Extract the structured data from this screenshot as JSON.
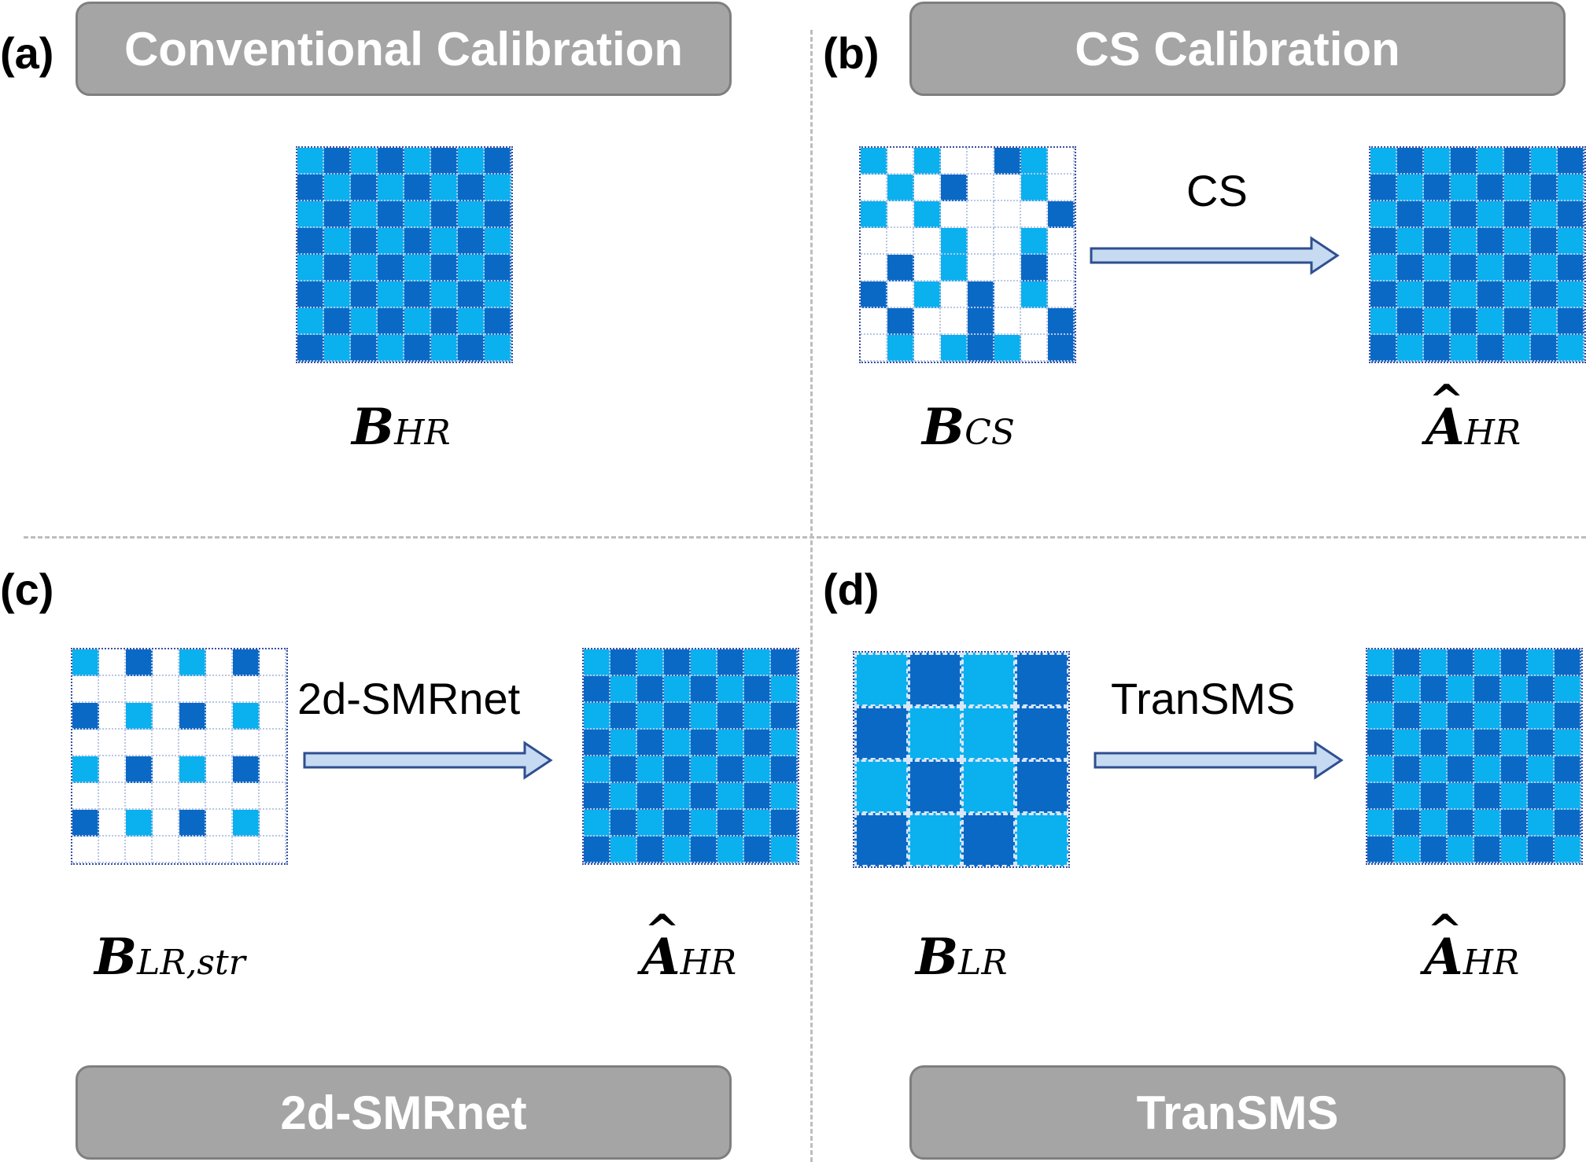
{
  "colors": {
    "dark": "#0b69c6",
    "light": "#0bb0ee",
    "empty": "#ffffff",
    "box_fill": "#a5a5a5",
    "box_border": "#7f7f7f"
  },
  "panels": {
    "a": {
      "label": "(a)",
      "title": "Conventional Calibration",
      "matrix": {
        "name": "B",
        "sub": "HR",
        "hat": false,
        "pattern": "checker8"
      }
    },
    "b": {
      "label": "(b)",
      "title": "CS Calibration",
      "arrow_label": "CS",
      "input": {
        "name": "B",
        "sub": "CS",
        "hat": false,
        "pattern": "cs8"
      },
      "output": {
        "name": "A",
        "sub": "HR",
        "hat": true,
        "pattern": "checker8"
      }
    },
    "c": {
      "label": "(c)",
      "title": "2d-SMRnet",
      "arrow_label": "2d-SMRnet",
      "input": {
        "name": "B",
        "sub": "LR,str",
        "hat": false,
        "pattern": "str8"
      },
      "output": {
        "name": "A",
        "sub": "HR",
        "hat": true,
        "pattern": "checker8"
      }
    },
    "d": {
      "label": "(d)",
      "title": "TranSMS",
      "arrow_label": "TranSMS",
      "input": {
        "name": "B",
        "sub": "LR",
        "hat": false,
        "pattern": "lr4"
      },
      "output": {
        "name": "A",
        "sub": "HR",
        "hat": true,
        "pattern": "checker8"
      }
    }
  }
}
